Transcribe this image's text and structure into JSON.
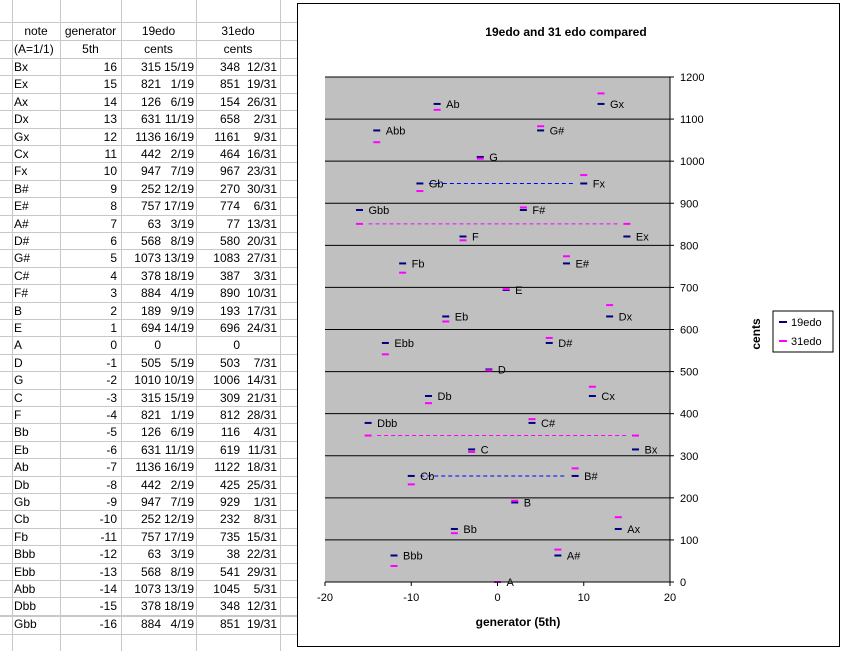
{
  "sheet": {
    "header1": [
      "note",
      "generator",
      "19edo",
      "31edo"
    ],
    "header2": [
      "(A=1/1)",
      "5th",
      "cents",
      "cents"
    ],
    "rows": [
      {
        "note": "Bx",
        "gen": "16",
        "c19": "315",
        "f19": "15/19",
        "c31": "348",
        "f31": "12/31"
      },
      {
        "note": "Ex",
        "gen": "15",
        "c19": "821",
        "f19": "1/19",
        "c31": "851",
        "f31": "19/31"
      },
      {
        "note": "Ax",
        "gen": "14",
        "c19": "126",
        "f19": "6/19",
        "c31": "154",
        "f31": "26/31"
      },
      {
        "note": "Dx",
        "gen": "13",
        "c19": "631",
        "f19": "11/19",
        "c31": "658",
        "f31": "2/31"
      },
      {
        "note": "Gx",
        "gen": "12",
        "c19": "1136",
        "f19": "16/19",
        "c31": "1161",
        "f31": "9/31"
      },
      {
        "note": "Cx",
        "gen": "11",
        "c19": "442",
        "f19": "2/19",
        "c31": "464",
        "f31": "16/31"
      },
      {
        "note": "Fx",
        "gen": "10",
        "c19": "947",
        "f19": "7/19",
        "c31": "967",
        "f31": "23/31"
      },
      {
        "note": "B#",
        "gen": "9",
        "c19": "252",
        "f19": "12/19",
        "c31": "270",
        "f31": "30/31"
      },
      {
        "note": "E#",
        "gen": "8",
        "c19": "757",
        "f19": "17/19",
        "c31": "774",
        "f31": "6/31"
      },
      {
        "note": "A#",
        "gen": "7",
        "c19": "63",
        "f19": "3/19",
        "c31": "77",
        "f31": "13/31"
      },
      {
        "note": "D#",
        "gen": "6",
        "c19": "568",
        "f19": "8/19",
        "c31": "580",
        "f31": "20/31"
      },
      {
        "note": "G#",
        "gen": "5",
        "c19": "1073",
        "f19": "13/19",
        "c31": "1083",
        "f31": "27/31"
      },
      {
        "note": "C#",
        "gen": "4",
        "c19": "378",
        "f19": "18/19",
        "c31": "387",
        "f31": "3/31"
      },
      {
        "note": "F#",
        "gen": "3",
        "c19": "884",
        "f19": "4/19",
        "c31": "890",
        "f31": "10/31"
      },
      {
        "note": "B",
        "gen": "2",
        "c19": "189",
        "f19": "9/19",
        "c31": "193",
        "f31": "17/31"
      },
      {
        "note": "E",
        "gen": "1",
        "c19": "694",
        "f19": "14/19",
        "c31": "696",
        "f31": "24/31"
      },
      {
        "note": "A",
        "gen": "0",
        "c19": "0",
        "f19": "",
        "c31": "0",
        "f31": ""
      },
      {
        "note": "D",
        "gen": "-1",
        "c19": "505",
        "f19": "5/19",
        "c31": "503",
        "f31": "7/31"
      },
      {
        "note": "G",
        "gen": "-2",
        "c19": "1010",
        "f19": "10/19",
        "c31": "1006",
        "f31": "14/31"
      },
      {
        "note": "C",
        "gen": "-3",
        "c19": "315",
        "f19": "15/19",
        "c31": "309",
        "f31": "21/31"
      },
      {
        "note": "F",
        "gen": "-4",
        "c19": "821",
        "f19": "1/19",
        "c31": "812",
        "f31": "28/31"
      },
      {
        "note": "Bb",
        "gen": "-5",
        "c19": "126",
        "f19": "6/19",
        "c31": "116",
        "f31": "4/31"
      },
      {
        "note": "Eb",
        "gen": "-6",
        "c19": "631",
        "f19": "11/19",
        "c31": "619",
        "f31": "11/31"
      },
      {
        "note": "Ab",
        "gen": "-7",
        "c19": "1136",
        "f19": "16/19",
        "c31": "1122",
        "f31": "18/31"
      },
      {
        "note": "Db",
        "gen": "-8",
        "c19": "442",
        "f19": "2/19",
        "c31": "425",
        "f31": "25/31"
      },
      {
        "note": "Gb",
        "gen": "-9",
        "c19": "947",
        "f19": "7/19",
        "c31": "929",
        "f31": "1/31"
      },
      {
        "note": "Cb",
        "gen": "-10",
        "c19": "252",
        "f19": "12/19",
        "c31": "232",
        "f31": "8/31"
      },
      {
        "note": "Fb",
        "gen": "-11",
        "c19": "757",
        "f19": "17/19",
        "c31": "735",
        "f31": "15/31"
      },
      {
        "note": "Bbb",
        "gen": "-12",
        "c19": "63",
        "f19": "3/19",
        "c31": "38",
        "f31": "22/31"
      },
      {
        "note": "Ebb",
        "gen": "-13",
        "c19": "568",
        "f19": "8/19",
        "c31": "541",
        "f31": "29/31"
      },
      {
        "note": "Abb",
        "gen": "-14",
        "c19": "1073",
        "f19": "13/19",
        "c31": "1045",
        "f31": "5/31"
      },
      {
        "note": "Dbb",
        "gen": "-15",
        "c19": "378",
        "f19": "18/19",
        "c31": "348",
        "f31": "12/31"
      },
      {
        "note": "Gbb",
        "gen": "-16",
        "c19": "884",
        "f19": "4/19",
        "c31": "851",
        "f31": "19/31"
      }
    ]
  },
  "chart_data": {
    "type": "scatter",
    "title": "19edo and 31 edo compared",
    "xlabel": "generator (5th)",
    "ylabel": "cents",
    "xlim": [
      -20,
      20
    ],
    "ylim": [
      0,
      1200
    ],
    "x_ticks": [
      -20,
      -10,
      0,
      10,
      20
    ],
    "y_ticks": [
      0,
      100,
      200,
      300,
      400,
      500,
      600,
      700,
      800,
      900,
      1000,
      1100,
      1200
    ],
    "grid": "horizontal",
    "y_axis_side": "right",
    "legend_position": "right",
    "plot_background": "#c0c0c0",
    "marker": "dash",
    "series": [
      {
        "name": "19edo",
        "color": "#000080",
        "x": [
          16,
          15,
          14,
          13,
          12,
          11,
          10,
          9,
          8,
          7,
          6,
          5,
          4,
          3,
          2,
          1,
          0,
          -1,
          -2,
          -3,
          -4,
          -5,
          -6,
          -7,
          -8,
          -9,
          -10,
          -11,
          -12,
          -13,
          -14,
          -15,
          -16
        ],
        "y": [
          315,
          821,
          126,
          631,
          1136,
          442,
          947,
          252,
          757,
          63,
          568,
          1073,
          378,
          884,
          189,
          694,
          0,
          505,
          1010,
          315,
          821,
          126,
          631,
          1136,
          442,
          947,
          252,
          757,
          63,
          568,
          1073,
          378,
          884
        ]
      },
      {
        "name": "31edo",
        "color": "#ff00ff",
        "x": [
          16,
          15,
          14,
          13,
          12,
          11,
          10,
          9,
          8,
          7,
          6,
          5,
          4,
          3,
          2,
          1,
          0,
          -1,
          -2,
          -3,
          -4,
          -5,
          -6,
          -7,
          -8,
          -9,
          -10,
          -11,
          -12,
          -13,
          -14,
          -15,
          -16
        ],
        "y": [
          348,
          851,
          154,
          658,
          1161,
          464,
          967,
          270,
          774,
          77,
          580,
          1083,
          387,
          890,
          193,
          696,
          0,
          503,
          1006,
          309,
          812,
          116,
          619,
          1122,
          425,
          929,
          232,
          735,
          38,
          541,
          1045,
          348,
          851
        ]
      }
    ],
    "point_labels": [
      {
        "x": 16,
        "y": 315,
        "text": "Bx"
      },
      {
        "x": 15,
        "y": 821,
        "text": "Ex"
      },
      {
        "x": 14,
        "y": 126,
        "text": "Ax"
      },
      {
        "x": 13,
        "y": 631,
        "text": "Dx"
      },
      {
        "x": 12,
        "y": 1136,
        "text": "Gx"
      },
      {
        "x": 11,
        "y": 442,
        "text": "Cx"
      },
      {
        "x": 10,
        "y": 947,
        "text": "Fx"
      },
      {
        "x": 9,
        "y": 252,
        "text": "B#"
      },
      {
        "x": 8,
        "y": 757,
        "text": "E#"
      },
      {
        "x": 7,
        "y": 63,
        "text": "A#"
      },
      {
        "x": 6,
        "y": 568,
        "text": "D#"
      },
      {
        "x": 5,
        "y": 1073,
        "text": "G#"
      },
      {
        "x": 4,
        "y": 378,
        "text": "C#"
      },
      {
        "x": 3,
        "y": 884,
        "text": "F#"
      },
      {
        "x": 2,
        "y": 189,
        "text": "B"
      },
      {
        "x": 1,
        "y": 694,
        "text": "E"
      },
      {
        "x": 0,
        "y": 0,
        "text": "A"
      },
      {
        "x": -1,
        "y": 505,
        "text": "D"
      },
      {
        "x": -2,
        "y": 1010,
        "text": "G"
      },
      {
        "x": -3,
        "y": 315,
        "text": "C"
      },
      {
        "x": -4,
        "y": 821,
        "text": "F"
      },
      {
        "x": -5,
        "y": 126,
        "text": "Bb"
      },
      {
        "x": -6,
        "y": 631,
        "text": "Eb"
      },
      {
        "x": -7,
        "y": 1136,
        "text": "Ab"
      },
      {
        "x": -8,
        "y": 442,
        "text": "Db"
      },
      {
        "x": -9,
        "y": 947,
        "text": "Gb"
      },
      {
        "x": -10,
        "y": 252,
        "text": "Cb"
      },
      {
        "x": -11,
        "y": 757,
        "text": "Fb"
      },
      {
        "x": -12,
        "y": 63,
        "text": "Bbb"
      },
      {
        "x": -13,
        "y": 568,
        "text": "Ebb"
      },
      {
        "x": -14,
        "y": 1073,
        "text": "Abb"
      },
      {
        "x": -15,
        "y": 378,
        "text": "Dbb"
      },
      {
        "x": -16,
        "y": 884,
        "text": "Gbb"
      }
    ],
    "connectors": [
      {
        "x1": -9,
        "x2": 10,
        "y": 947,
        "color": "#0000ff"
      },
      {
        "x1": -10,
        "x2": 9,
        "y": 252,
        "color": "#0000ff"
      },
      {
        "x1": -16,
        "x2": 15,
        "y": 851,
        "color": "#ff00ff"
      },
      {
        "x1": -15,
        "x2": 16,
        "y": 348,
        "color": "#ff00ff"
      }
    ]
  }
}
